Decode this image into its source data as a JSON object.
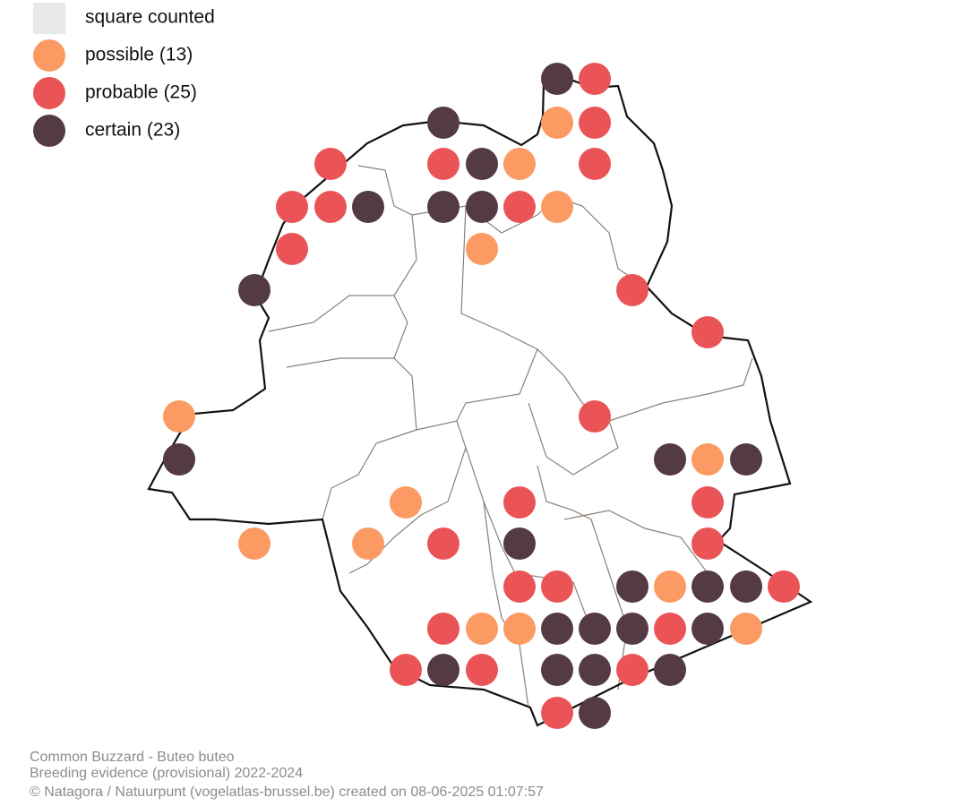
{
  "legend": [
    {
      "label": "square counted",
      "color": "#e8e8e8"
    },
    {
      "label": "possible (13)",
      "color": "#fb9a62"
    },
    {
      "label": "probable (25)",
      "color": "#ea5457"
    },
    {
      "label": "certain (23)",
      "color": "#543a45"
    }
  ],
  "footer": {
    "title": "Common Buzzard - Buteo buteo",
    "subtitle": "Breeding evidence (provisional) 2022-2024",
    "credit": "© Natagora / Natuurpunt (vogelatlas-brussel.be) created on 08-06-2025 01:07:57"
  }
}
